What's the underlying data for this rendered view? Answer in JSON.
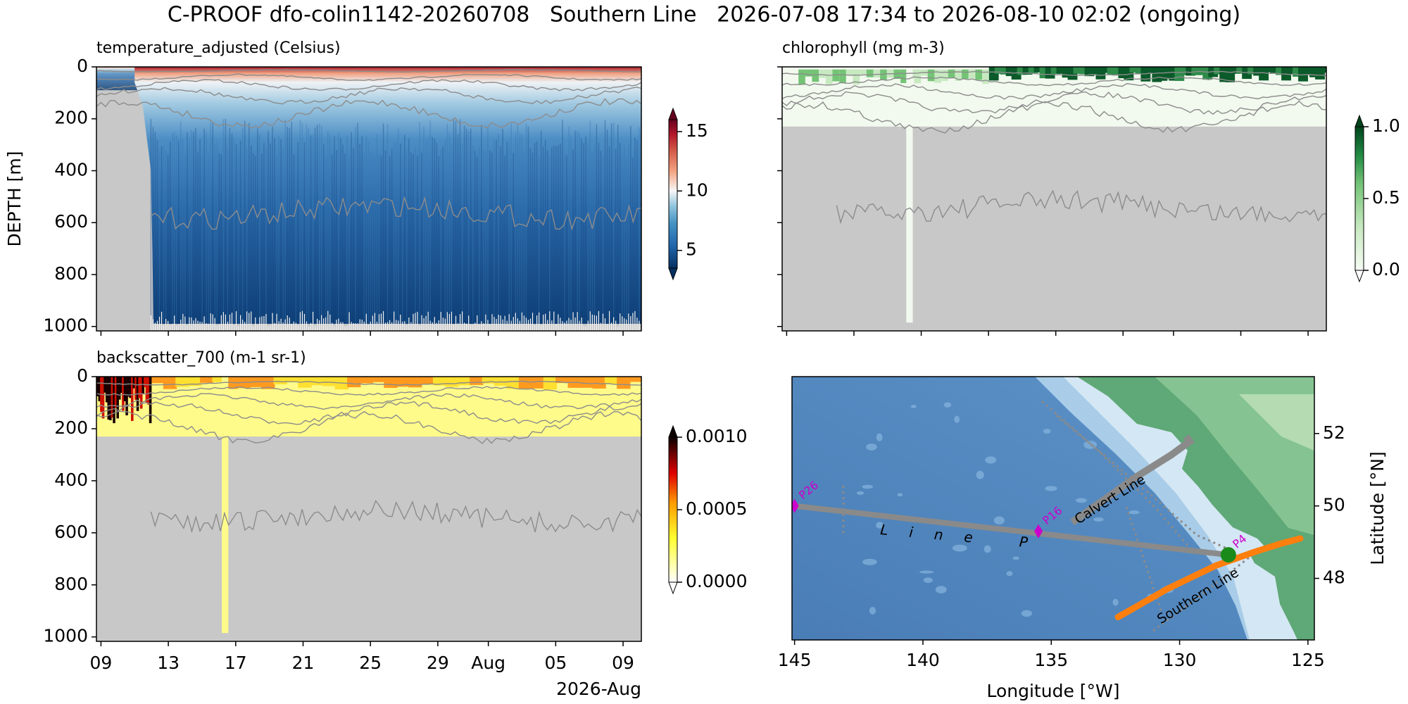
{
  "title": "C-PROOF dfo-colin1142-20260708   Southern Line   2026-07-08 17:34 to 2026-08-10 02:02 (ongoing)",
  "chart_data": [
    {
      "type": "heatmap",
      "title": "temperature_adjusted (Celsius)",
      "ylabel": "DEPTH [m]",
      "ylim": [
        1017,
        0
      ],
      "yticks": [
        0,
        200,
        400,
        600,
        800,
        1000
      ],
      "colorbar": {
        "lim": [
          3.5,
          16
        ],
        "ticks": [
          5,
          10,
          15
        ]
      }
    },
    {
      "type": "heatmap",
      "title": "chlorophyll (mg m-3)",
      "colorbar": {
        "lim": [
          0,
          1
        ],
        "ticks": [
          {
            "value": 0,
            "label": "0.0"
          },
          {
            "value": 0.5,
            "label": "0.5"
          },
          {
            "value": 1,
            "label": "1.0"
          }
        ]
      }
    },
    {
      "type": "heatmap",
      "title": "backscatter_700 (m-1 sr-1)",
      "xlim": [
        "2026-07-08T17:34",
        "2026-08-10T02:02"
      ],
      "xticks": [
        {
          "value": "2026-07-09T00:00",
          "label": "09"
        },
        {
          "value": "2026-07-13T00:00",
          "label": "13"
        },
        {
          "value": "2026-07-17T00:00",
          "label": "17"
        },
        {
          "value": "2026-07-21T00:00",
          "label": "21"
        },
        {
          "value": "2026-07-25T00:00",
          "label": "25"
        },
        {
          "value": "2026-07-29T00:00",
          "label": "29"
        },
        {
          "value": "2026-08-01T00:00",
          "label": "Aug"
        },
        {
          "value": "2026-08-05T00:00",
          "label": "05"
        },
        {
          "value": "2026-08-09T00:00",
          "label": "09"
        }
      ],
      "xlabel_offset": "2026-Aug",
      "ylim": [
        1017,
        0
      ],
      "yticks": [
        0,
        200,
        400,
        600,
        800,
        1000
      ],
      "colorbar": {
        "lim": [
          0,
          0.001
        ],
        "ticks": [
          {
            "value": 0,
            "label": "0.0000"
          },
          {
            "value": 0.0005,
            "label": "0.0005"
          },
          {
            "value": 0.001,
            "label": "0.0010"
          }
        ]
      }
    },
    {
      "type": "map",
      "xlabel": "Longitude [°W]",
      "ylabel": "Latitude [°N]",
      "xlim": [
        145.1,
        124.75
      ],
      "xticks": [
        145,
        140,
        135,
        130,
        125
      ],
      "ylim": [
        46.3,
        53.57
      ],
      "yticks": [
        48,
        50,
        52
      ],
      "stations": {
        "names": [
          "P26",
          "P16",
          "P4"
        ],
        "lon": [
          145,
          135.5,
          128.1
        ],
        "lat": [
          50,
          49.3,
          48.65
        ]
      },
      "track": {
        "lon": [
          132.4,
          130.5,
          128.6,
          127.0,
          126.1,
          125.3
        ],
        "lat": [
          46.93,
          47.7,
          48.35,
          48.75,
          48.95,
          49.1
        ]
      },
      "position": {
        "lon": 128.1,
        "lat": 48.65
      },
      "annotations": [
        "Line P",
        "Calvert Line",
        "Southern Line"
      ]
    }
  ]
}
